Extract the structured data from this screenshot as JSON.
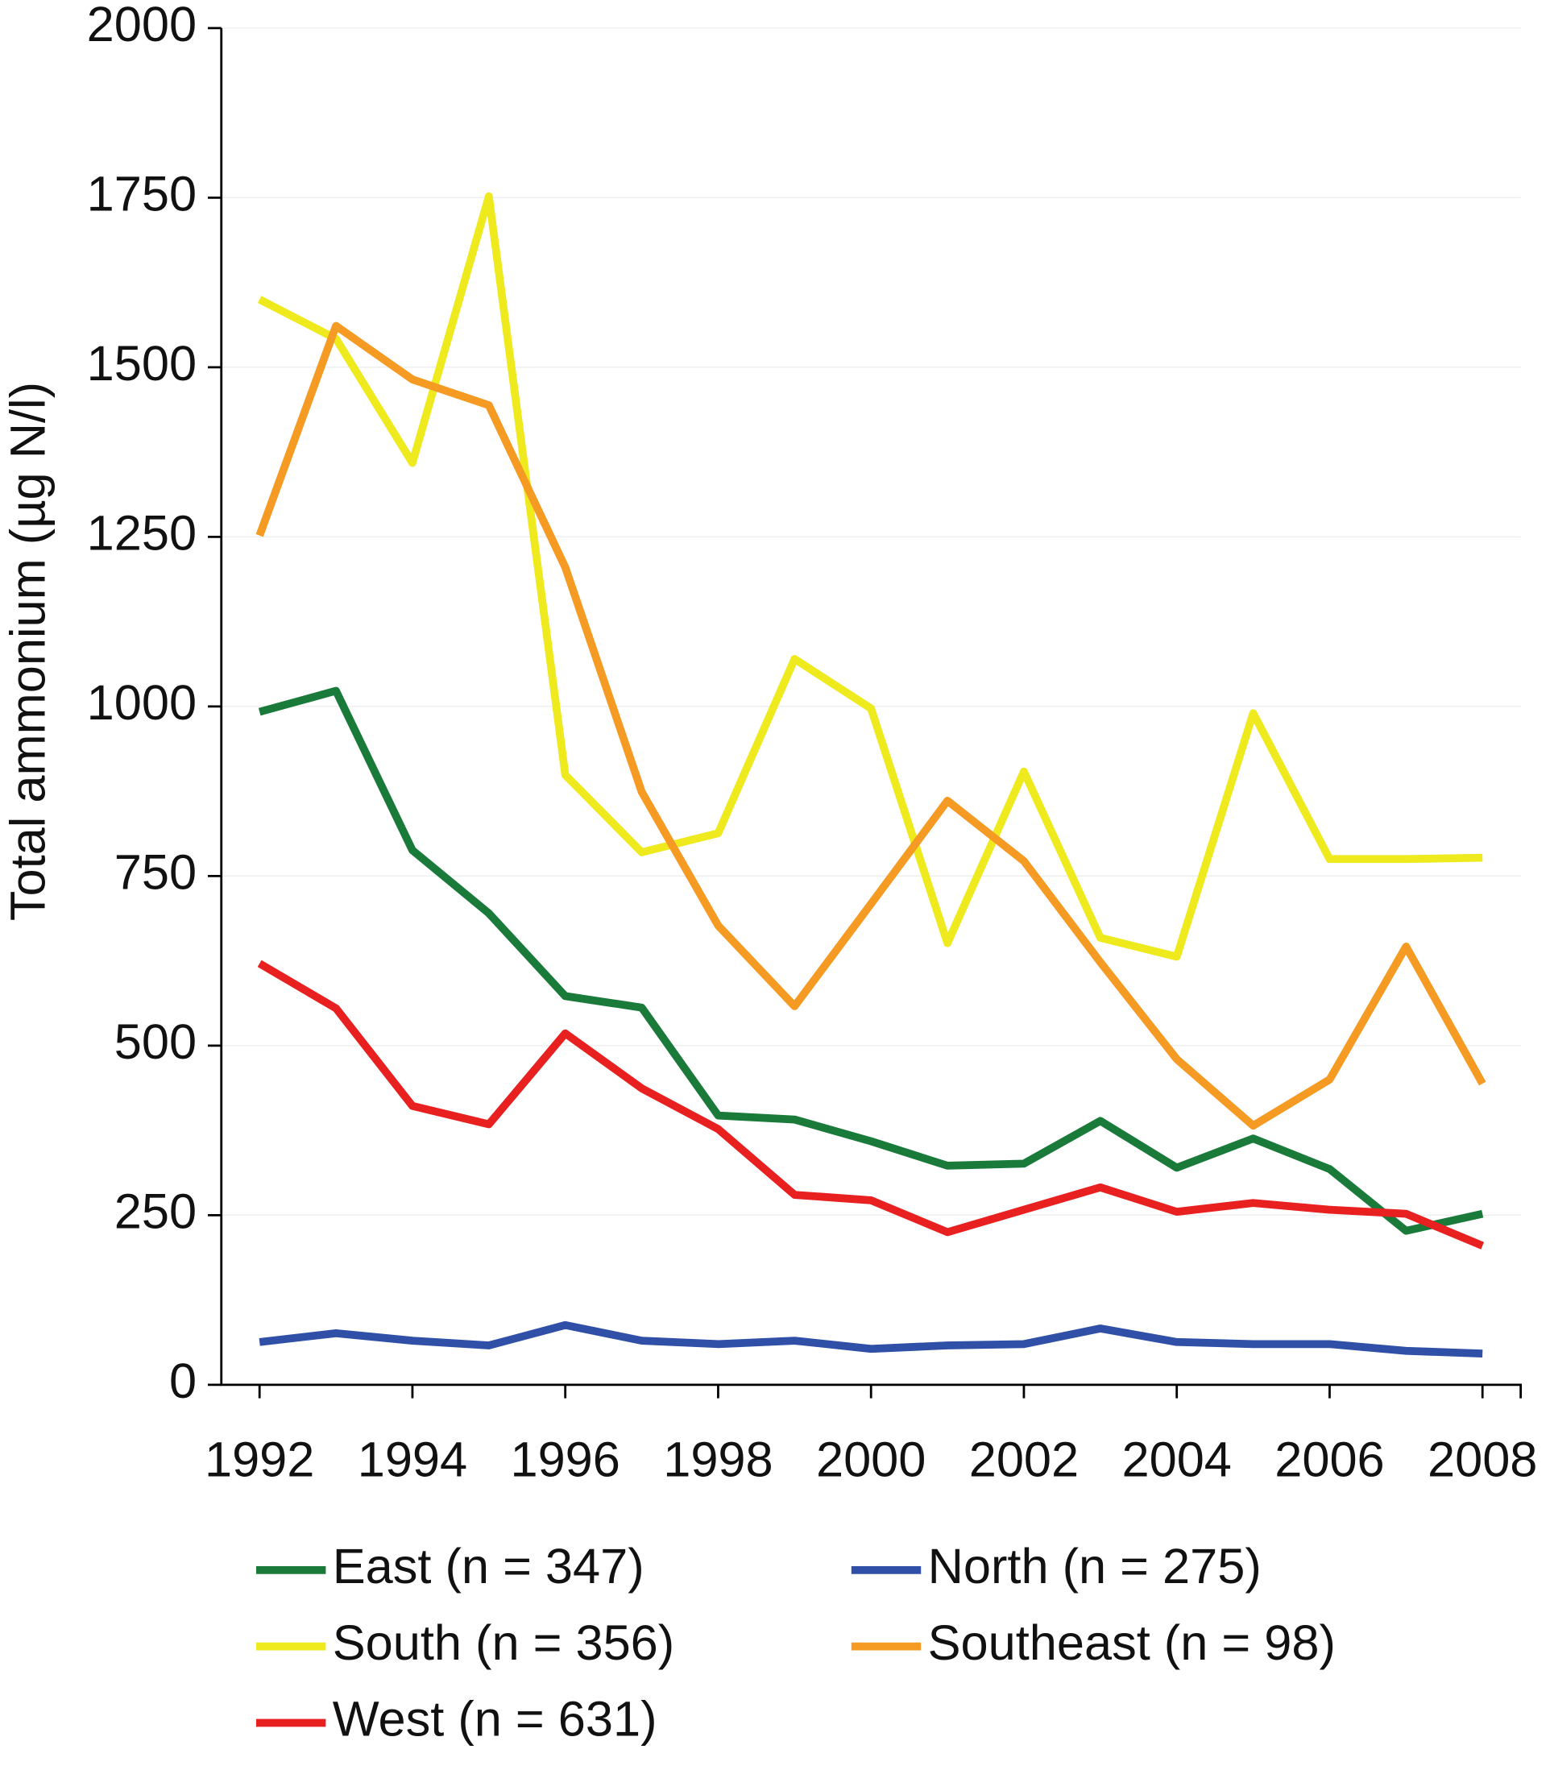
{
  "chart_data": {
    "type": "line",
    "y_label": "Total ammonium (µg N/l)",
    "x": [
      1992,
      1993,
      1994,
      1995,
      1996,
      1997,
      1998,
      1999,
      2000,
      2001,
      2002,
      2003,
      2004,
      2005,
      2006,
      2007,
      2008
    ],
    "xlim": [
      1991.5,
      2008.5
    ],
    "xticks": [
      1992,
      1994,
      1996,
      1998,
      2000,
      2002,
      2004,
      2006,
      2008
    ],
    "ylim": [
      0,
      2000
    ],
    "yticks": [
      0,
      250,
      500,
      750,
      1000,
      1250,
      1500,
      1750,
      2000
    ],
    "grid": true,
    "legend": "bottom",
    "series": [
      {
        "name": "East (n = 347)",
        "color": "#1a7a3a",
        "values": [
          992,
          1023,
          788,
          695,
          573,
          556,
          397,
          391,
          359,
          323,
          326,
          389,
          320,
          363,
          318,
          227,
          252
        ]
      },
      {
        "name": "North (n = 275)",
        "color": "#3050a8",
        "values": [
          63,
          76,
          65,
          58,
          88,
          65,
          60,
          65,
          53,
          58,
          60,
          83,
          63,
          60,
          60,
          50,
          46
        ]
      },
      {
        "name": "South (n = 356)",
        "color": "#eeea1e",
        "values": [
          1600,
          1542,
          1359,
          1752,
          899,
          785,
          813,
          1070,
          997,
          651,
          904,
          659,
          631,
          990,
          775,
          775,
          777
        ]
      },
      {
        "name": "Southeast (n = 98)",
        "color": "#f59a22",
        "values": [
          1252,
          1561,
          1482,
          1444,
          1205,
          874,
          677,
          558,
          709,
          861,
          772,
          623,
          480,
          382,
          450,
          646,
          444
        ]
      },
      {
        "name": "West (n = 631)",
        "color": "#e82020",
        "values": [
          621,
          555,
          411,
          384,
          518,
          437,
          377,
          280,
          272,
          225,
          258,
          291,
          255,
          268,
          258,
          252,
          205
        ]
      }
    ]
  }
}
